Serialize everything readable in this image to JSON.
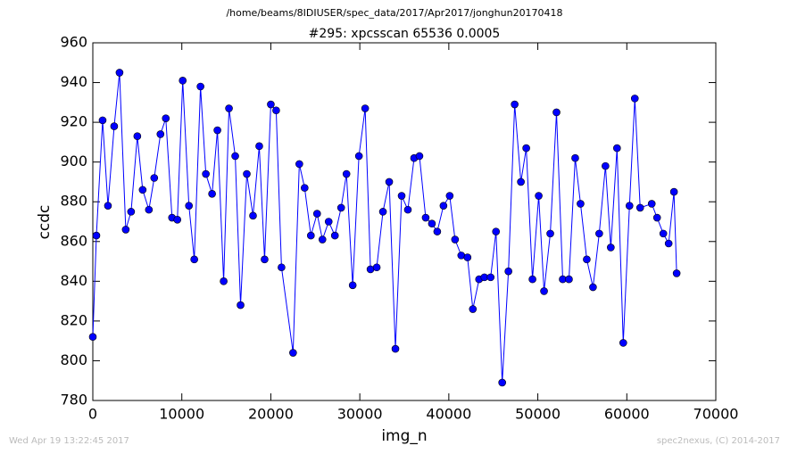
{
  "chart_data": {
    "type": "line",
    "suptitle": "/home/beams/8IDIUSER/spec_data/2017/Apr2017/jonghun20170418",
    "title": "#295: xpcsscan 65536 0.0005",
    "xlabel": "img_n",
    "ylabel": "ccdc",
    "footer_left": "Wed Apr 19 13:22:45 2017",
    "footer_right": "spec2nexus, (C) 2014-2017",
    "color": "#0000ff",
    "marker": "o",
    "grid": false,
    "xlim": [
      0,
      70000
    ],
    "xticks": [
      0,
      10000,
      20000,
      30000,
      40000,
      50000,
      60000,
      70000
    ],
    "ylim": [
      780,
      960
    ],
    "yticks": [
      780,
      800,
      820,
      840,
      860,
      880,
      900,
      920,
      940,
      960
    ],
    "x": [
      0,
      400,
      1100,
      1700,
      2400,
      3000,
      3700,
      4300,
      5000,
      5600,
      6300,
      6900,
      7600,
      8200,
      8900,
      9500,
      10100,
      10800,
      11400,
      12100,
      12700,
      13400,
      14000,
      14700,
      15300,
      16000,
      16600,
      17300,
      18000,
      18700,
      19300,
      20000,
      20600,
      21200,
      22500,
      23200,
      23800,
      24500,
      25200,
      25800,
      26500,
      27200,
      27900,
      28500,
      29200,
      29900,
      30600,
      31200,
      31900,
      32600,
      33300,
      34000,
      34700,
      35400,
      36100,
      36700,
      37400,
      38100,
      38700,
      39400,
      40100,
      40700,
      41400,
      42100,
      42700,
      43400,
      44000,
      44700,
      45300,
      46000,
      46700,
      47400,
      48100,
      48700,
      49400,
      50100,
      50700,
      51400,
      52100,
      52800,
      53500,
      54200,
      54800,
      55500,
      56200,
      56900,
      57600,
      58200,
      58900,
      59600,
      60300,
      60900,
      61500,
      62800,
      63400,
      64100,
      64700,
      65300,
      65600
    ],
    "values": [
      812,
      863,
      921,
      878,
      918,
      945,
      866,
      875,
      913,
      886,
      876,
      892,
      914,
      922,
      872,
      871,
      941,
      878,
      851,
      938,
      894,
      884,
      916,
      840,
      927,
      903,
      828,
      894,
      873,
      908,
      851,
      929,
      926,
      847,
      804,
      899,
      887,
      863,
      874,
      861,
      870,
      863,
      877,
      894,
      838,
      903,
      927,
      846,
      847,
      875,
      890,
      806,
      883,
      876,
      902,
      903,
      872,
      869,
      865,
      878,
      883,
      861,
      853,
      852,
      826,
      841,
      842,
      842,
      865,
      789,
      845,
      929,
      890,
      907,
      841,
      883,
      835,
      864,
      925,
      841,
      841,
      902,
      879,
      851,
      837,
      864,
      898,
      857,
      907,
      809,
      878,
      932,
      877,
      879,
      872,
      864,
      859,
      885,
      844
    ]
  }
}
